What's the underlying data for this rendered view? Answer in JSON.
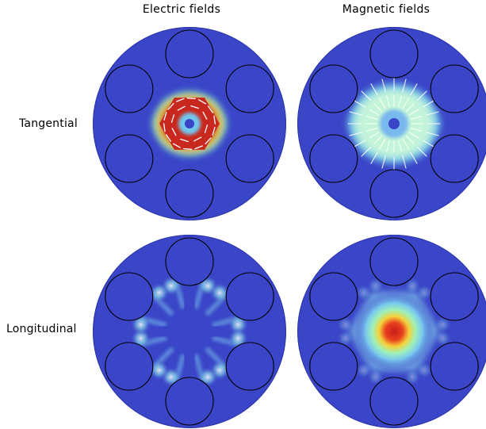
{
  "titles": {
    "electric": "Electric fields",
    "magnetic": "Magnetic fields"
  },
  "rows": {
    "tangential": "Tangential",
    "longitudinal": "Longitudinal"
  },
  "colors": {
    "background_field": "#3a45c8",
    "low": "#3a45c8",
    "high": "#c81e1e",
    "arrow": "#ffffff",
    "outline": "#000000"
  }
}
